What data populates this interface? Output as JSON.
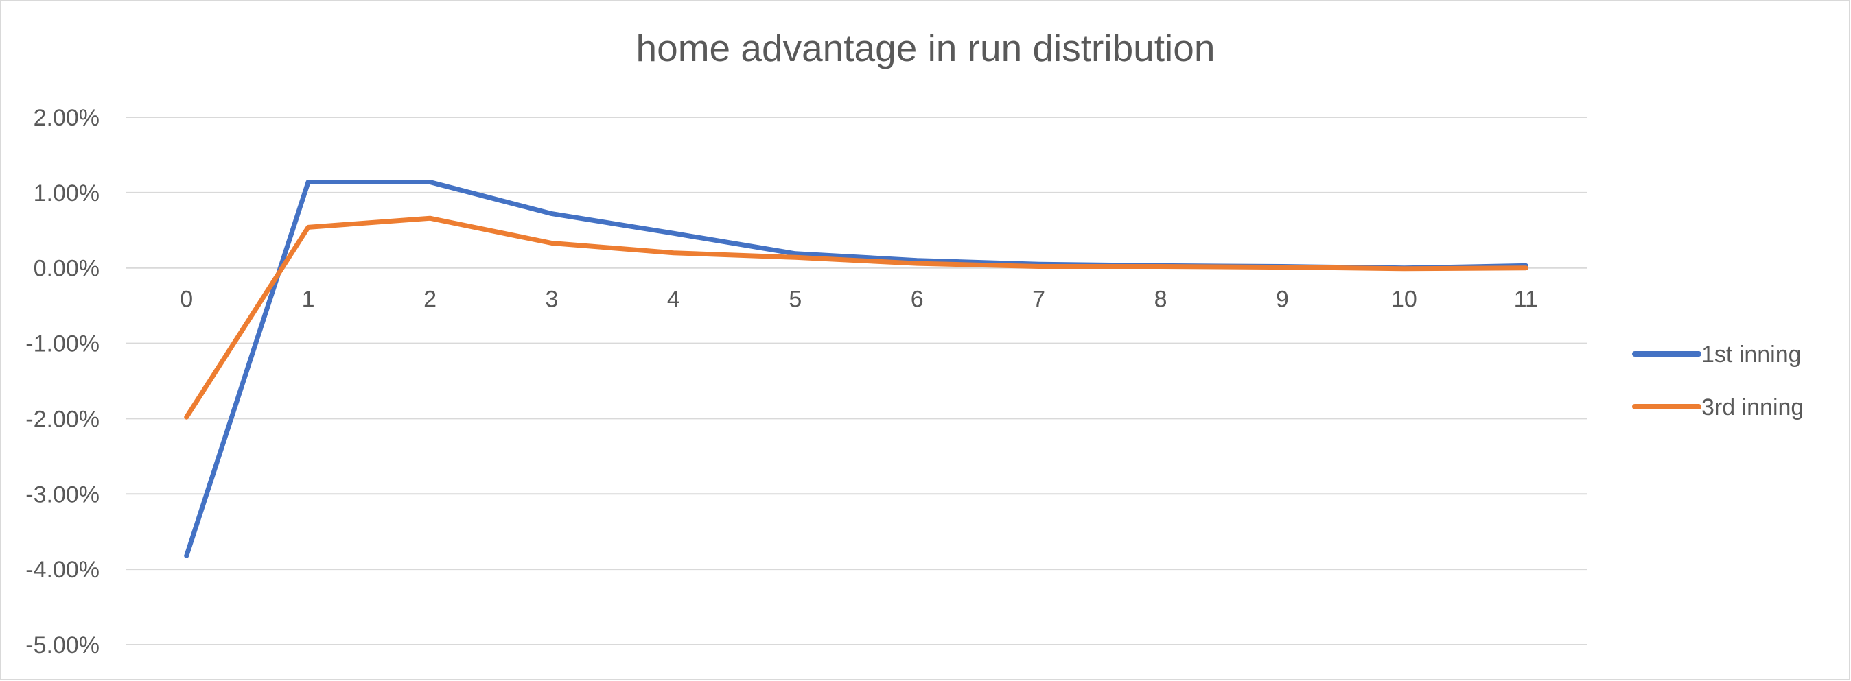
{
  "chart_data": {
    "type": "line",
    "title": "home advantage in run distribution",
    "xlabel": "",
    "ylabel": "",
    "categories": [
      "0",
      "1",
      "2",
      "3",
      "4",
      "5",
      "6",
      "7",
      "8",
      "9",
      "10",
      "11"
    ],
    "y_ticks": [
      "2.00%",
      "1.00%",
      "0.00%",
      "-1.00%",
      "-2.00%",
      "-3.00%",
      "-4.00%",
      "-5.00%"
    ],
    "ylim": [
      -5,
      2
    ],
    "y_unit": "percent",
    "grid": "horizontal",
    "legend_position": "right",
    "series": [
      {
        "name": "1st inning",
        "color": "#4472C4",
        "values": [
          -3.82,
          1.14,
          1.14,
          0.72,
          0.46,
          0.19,
          0.1,
          0.05,
          0.03,
          0.02,
          0.0,
          0.03
        ]
      },
      {
        "name": "3rd inning",
        "color": "#ED7D31",
        "values": [
          -1.98,
          0.54,
          0.66,
          0.33,
          0.2,
          0.14,
          0.06,
          0.02,
          0.02,
          0.01,
          -0.01,
          0.0
        ]
      }
    ]
  }
}
